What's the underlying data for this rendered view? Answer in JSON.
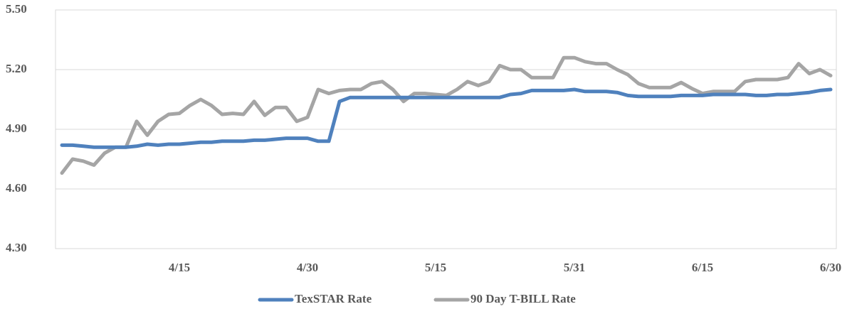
{
  "chart_data": {
    "type": "line",
    "categories": [
      null,
      null,
      null,
      null,
      null,
      null,
      null,
      null,
      null,
      null,
      null,
      "4/15",
      null,
      null,
      null,
      null,
      null,
      null,
      null,
      null,
      null,
      null,
      null,
      "4/30",
      null,
      null,
      null,
      null,
      null,
      null,
      null,
      null,
      null,
      null,
      null,
      "5/15",
      null,
      null,
      null,
      null,
      null,
      null,
      null,
      null,
      null,
      null,
      null,
      null,
      "5/31",
      null,
      null,
      null,
      null,
      null,
      null,
      null,
      null,
      null,
      null,
      null,
      "6/15",
      null,
      null,
      null,
      null,
      null,
      null,
      null,
      null,
      null,
      null,
      null,
      "6/30"
    ],
    "series": [
      {
        "name": "TexSTAR Rate",
        "color": "#4f81bd",
        "values": [
          4.82,
          4.82,
          4.815,
          4.81,
          4.81,
          4.81,
          4.81,
          4.815,
          4.825,
          4.82,
          4.825,
          4.825,
          4.83,
          4.835,
          4.835,
          4.84,
          4.84,
          4.84,
          4.845,
          4.845,
          4.85,
          4.855,
          4.855,
          4.855,
          4.84,
          4.84,
          5.04,
          5.06,
          5.06,
          5.06,
          5.06,
          5.06,
          5.06,
          5.06,
          5.06,
          5.06,
          5.06,
          5.06,
          5.06,
          5.06,
          5.06,
          5.06,
          5.075,
          5.08,
          5.095,
          5.095,
          5.095,
          5.095,
          5.1,
          5.09,
          5.09,
          5.09,
          5.085,
          5.07,
          5.065,
          5.065,
          5.065,
          5.065,
          5.07,
          5.07,
          5.07,
          5.075,
          5.075,
          5.075,
          5.075,
          5.07,
          5.07,
          5.075,
          5.075,
          5.08,
          5.085,
          5.095,
          5.1
        ]
      },
      {
        "name": "90 Day T-BILL Rate",
        "color": "#a5a5a5",
        "values": [
          4.68,
          4.75,
          4.74,
          4.72,
          4.78,
          4.81,
          4.81,
          4.94,
          4.87,
          4.94,
          4.975,
          4.98,
          5.02,
          5.05,
          5.02,
          4.975,
          4.98,
          4.975,
          5.04,
          4.97,
          5.01,
          5.01,
          4.94,
          4.96,
          5.1,
          5.08,
          5.095,
          5.1,
          5.1,
          5.13,
          5.14,
          5.1,
          5.04,
          5.08,
          5.08,
          5.075,
          5.07,
          5.1,
          5.14,
          5.12,
          5.14,
          5.22,
          5.2,
          5.2,
          5.16,
          5.16,
          5.16,
          5.26,
          5.26,
          5.24,
          5.23,
          5.23,
          5.2,
          5.175,
          5.13,
          5.11,
          5.11,
          5.11,
          5.135,
          5.105,
          5.08,
          5.09,
          5.09,
          5.09,
          5.14,
          5.15,
          5.15,
          5.15,
          5.16,
          5.23,
          5.18,
          5.2,
          5.17
        ]
      }
    ],
    "ylim": [
      4.3,
      5.5
    ],
    "yticks": [
      {
        "value": 4.3,
        "label": "4.30"
      },
      {
        "value": 4.6,
        "label": "4.60"
      },
      {
        "value": 4.9,
        "label": "4.90"
      },
      {
        "value": 5.2,
        "label": "5.20"
      },
      {
        "value": 5.5,
        "label": "5.50"
      }
    ],
    "grid": true
  }
}
